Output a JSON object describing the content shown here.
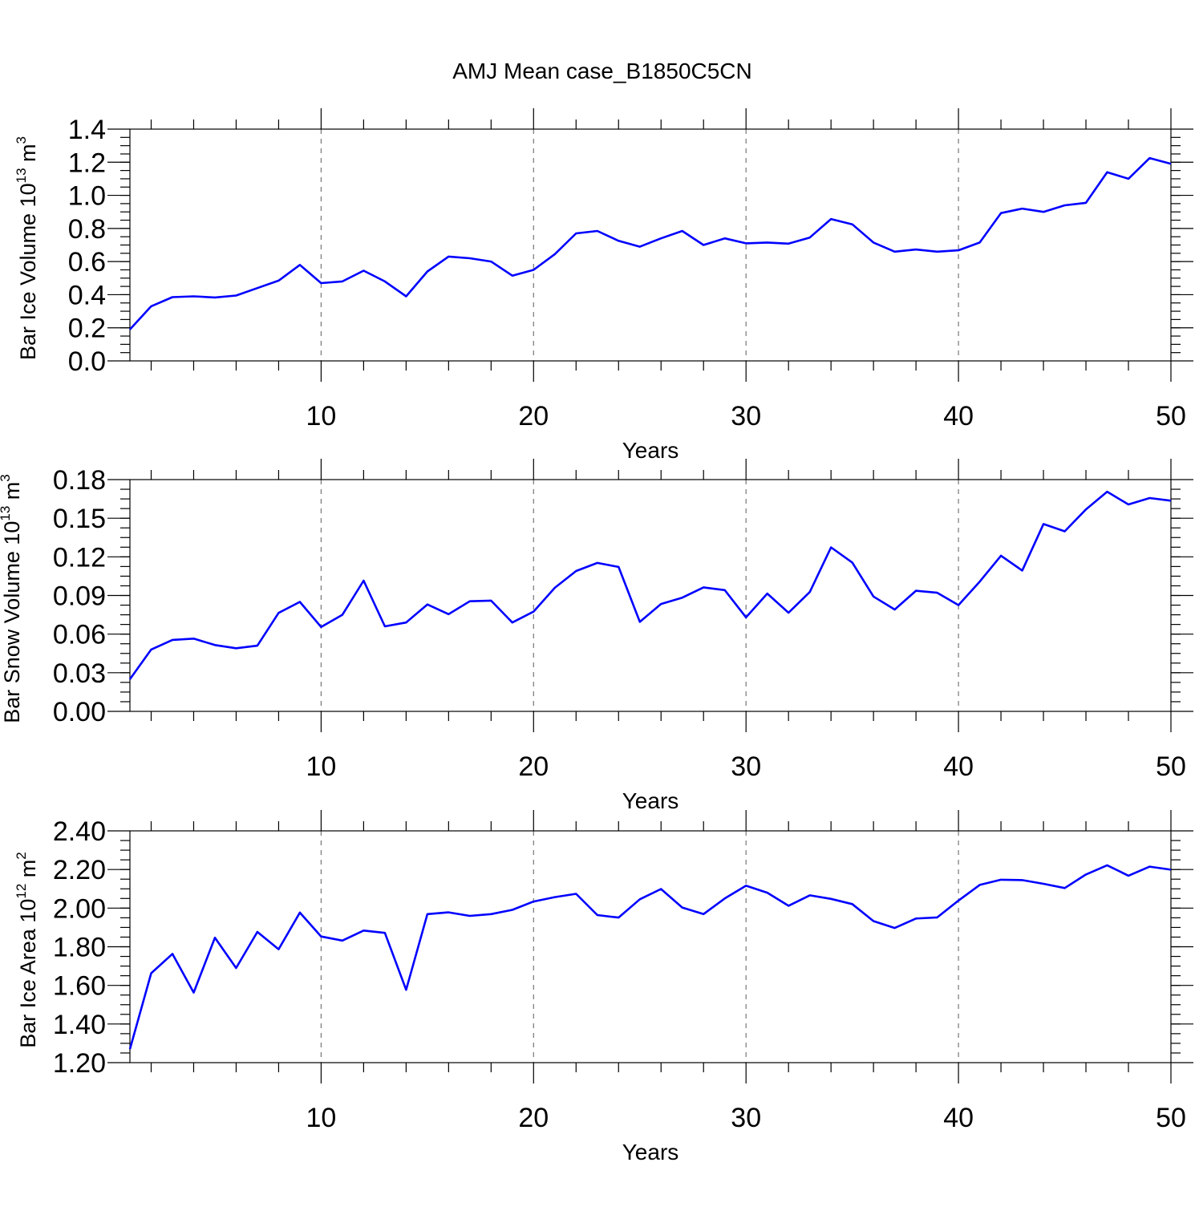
{
  "figure_title": "AMJ Mean case_B1850C5CN",
  "colors": {
    "series": "#0000ff",
    "grid": "#777777",
    "axis": "#000000"
  },
  "chart_data": [
    {
      "type": "line",
      "ylabel": "Bar Ice Volume 10",
      "ylabel_exp": "13",
      "ylabel_unit": " m",
      "ylabel_unit_exp": "3",
      "xlabel": "Years",
      "xlim": [
        1,
        50
      ],
      "ylim": [
        0,
        1.4
      ],
      "yticks": [
        "0.0",
        "0.2",
        "0.4",
        "0.6",
        "0.8",
        "1.0",
        "1.2",
        "1.4"
      ],
      "ytick_values": [
        0,
        0.2,
        0.4,
        0.6,
        0.8,
        1.0,
        1.2,
        1.4
      ],
      "ytick_minor_step": 0.05,
      "xticks": [
        "10",
        "20",
        "30",
        "40",
        "50"
      ],
      "xtick_values": [
        10,
        20,
        30,
        40,
        50
      ],
      "grid_x": [
        10,
        20,
        30,
        40
      ],
      "x": [
        1,
        2,
        3,
        4,
        5,
        6,
        7,
        8,
        9,
        10,
        11,
        12,
        13,
        14,
        15,
        16,
        17,
        18,
        19,
        20,
        21,
        22,
        23,
        24,
        25,
        26,
        27,
        28,
        29,
        30,
        31,
        32,
        33,
        34,
        35,
        36,
        37,
        38,
        39,
        40,
        41,
        42,
        43,
        44,
        45,
        46,
        47,
        48,
        49,
        50
      ],
      "values": [
        0.19,
        0.33,
        0.385,
        0.39,
        0.383,
        0.395,
        0.44,
        0.485,
        0.58,
        0.47,
        0.48,
        0.545,
        0.48,
        0.39,
        0.54,
        0.63,
        0.62,
        0.6,
        0.515,
        0.55,
        0.645,
        0.77,
        0.785,
        0.725,
        0.69,
        0.74,
        0.785,
        0.7,
        0.74,
        0.71,
        0.715,
        0.708,
        0.745,
        0.857,
        0.825,
        0.715,
        0.66,
        0.673,
        0.66,
        0.668,
        0.715,
        0.893,
        0.92,
        0.9,
        0.94,
        0.955,
        1.14,
        1.1,
        1.225,
        1.19
      ]
    },
    {
      "type": "line",
      "ylabel": "Bar Snow Volume 10",
      "ylabel_exp": "13",
      "ylabel_unit": " m",
      "ylabel_unit_exp": "3",
      "xlabel": "Years",
      "xlim": [
        1,
        50
      ],
      "ylim": [
        0,
        0.18
      ],
      "yticks": [
        "0.00",
        "0.03",
        "0.06",
        "0.09",
        "0.12",
        "0.15",
        "0.18"
      ],
      "ytick_values": [
        0,
        0.03,
        0.06,
        0.09,
        0.12,
        0.15,
        0.18
      ],
      "ytick_minor_step": 0.0075,
      "xticks": [
        "10",
        "20",
        "30",
        "40",
        "50"
      ],
      "xtick_values": [
        10,
        20,
        30,
        40,
        50
      ],
      "grid_x": [
        10,
        20,
        30,
        40
      ],
      "x": [
        1,
        2,
        3,
        4,
        5,
        6,
        7,
        8,
        9,
        10,
        11,
        12,
        13,
        14,
        15,
        16,
        17,
        18,
        19,
        20,
        21,
        22,
        23,
        24,
        25,
        26,
        27,
        28,
        29,
        30,
        31,
        32,
        33,
        34,
        35,
        36,
        37,
        38,
        39,
        40,
        41,
        42,
        43,
        44,
        45,
        46,
        47,
        48,
        49,
        50
      ],
      "values": [
        0.025,
        0.048,
        0.0555,
        0.0565,
        0.0515,
        0.049,
        0.051,
        0.0765,
        0.085,
        0.0655,
        0.075,
        0.1015,
        0.066,
        0.069,
        0.083,
        0.0755,
        0.0855,
        0.086,
        0.069,
        0.0775,
        0.096,
        0.109,
        0.1153,
        0.1122,
        0.0695,
        0.0834,
        0.0883,
        0.0963,
        0.0942,
        0.073,
        0.0915,
        0.0766,
        0.0927,
        0.1274,
        0.1156,
        0.0892,
        0.0791,
        0.0937,
        0.0921,
        0.0825,
        0.1008,
        0.1209,
        0.1094,
        0.1455,
        0.1398,
        0.1568,
        0.1706,
        0.1607,
        0.1657,
        0.1636
      ]
    },
    {
      "type": "line",
      "ylabel": "Bar Ice Area 10",
      "ylabel_exp": "12",
      "ylabel_unit": " m",
      "ylabel_unit_exp": "2",
      "xlabel": "Years",
      "xlim": [
        1,
        50
      ],
      "ylim": [
        1.2,
        2.4
      ],
      "yticks": [
        "1.20",
        "1.40",
        "1.60",
        "1.80",
        "2.00",
        "2.20",
        "2.40"
      ],
      "ytick_values": [
        1.2,
        1.4,
        1.6,
        1.8,
        2.0,
        2.2,
        2.4
      ],
      "ytick_minor_step": 0.05,
      "xticks": [
        "10",
        "20",
        "30",
        "40",
        "50"
      ],
      "xtick_values": [
        10,
        20,
        30,
        40,
        50
      ],
      "grid_x": [
        10,
        20,
        30,
        40
      ],
      "x": [
        1,
        2,
        3,
        4,
        5,
        6,
        7,
        8,
        9,
        10,
        11,
        12,
        13,
        14,
        15,
        16,
        17,
        18,
        19,
        20,
        21,
        22,
        23,
        24,
        25,
        26,
        27,
        28,
        29,
        30,
        31,
        32,
        33,
        34,
        35,
        36,
        37,
        38,
        39,
        40,
        41,
        42,
        43,
        44,
        45,
        46,
        47,
        48,
        49,
        50
      ],
      "values": [
        1.27,
        1.663,
        1.763,
        1.563,
        1.847,
        1.69,
        1.877,
        1.787,
        1.977,
        1.853,
        1.832,
        1.884,
        1.872,
        1.577,
        1.969,
        1.978,
        1.96,
        1.969,
        1.991,
        2.034,
        2.057,
        2.074,
        1.964,
        1.951,
        2.046,
        2.099,
        2.003,
        1.969,
        2.05,
        2.116,
        2.08,
        2.012,
        2.066,
        2.048,
        2.021,
        1.933,
        1.897,
        1.946,
        1.952,
        2.039,
        2.12,
        2.147,
        2.145,
        2.126,
        2.104,
        2.174,
        2.222,
        2.168,
        2.215,
        2.199
      ]
    }
  ]
}
